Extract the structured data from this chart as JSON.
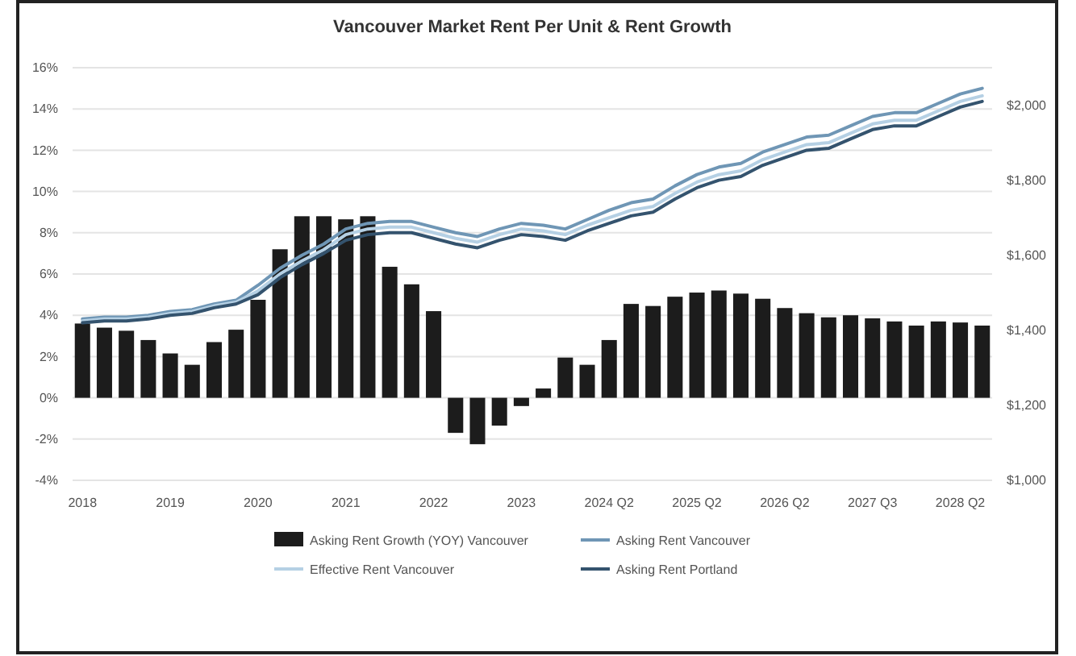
{
  "chart_data": {
    "type": "bar",
    "title": "Vancouver Market Rent Per Unit & Rent Growth",
    "categories": [
      "2018",
      null,
      null,
      null,
      "2019",
      null,
      null,
      null,
      "2020",
      null,
      null,
      null,
      "2021",
      null,
      null,
      null,
      "2022",
      null,
      null,
      null,
      "2023",
      null,
      null,
      null,
      "2024 Q2",
      null,
      null,
      null,
      "2025 Q2",
      null,
      null,
      null,
      "2026 Q2",
      null,
      null,
      null,
      "2027 Q3",
      null,
      null,
      null,
      "2028 Q2",
      null
    ],
    "series": [
      {
        "name": "Asking Rent Growth (YOY) Vancouver",
        "color": "#1c1c1c",
        "values": [
          3.6,
          3.4,
          3.25,
          2.8,
          2.15,
          1.6,
          2.7,
          3.3,
          4.75,
          7.2,
          8.8,
          8.8,
          8.65,
          8.8,
          6.35,
          5.5,
          4.2,
          -1.7,
          -2.25,
          -1.35,
          -0.4,
          0.45,
          1.95,
          1.6,
          2.8,
          4.55,
          4.45,
          4.9,
          5.1,
          5.2,
          5.05,
          4.8,
          4.35,
          4.1,
          3.9,
          4.0,
          3.85,
          3.7,
          3.5,
          3.7,
          3.65,
          3.5
        ]
      },
      {
        "name": "Asking Rent Vancouver",
        "type": "line",
        "axis": "y2",
        "color": "#6f96b5",
        "values": [
          1430,
          1435,
          1435,
          1440,
          1450,
          1455,
          1470,
          1480,
          1520,
          1565,
          1600,
          1630,
          1670,
          1685,
          1690,
          1690,
          1675,
          1660,
          1650,
          1670,
          1685,
          1680,
          1670,
          1695,
          1720,
          1740,
          1750,
          1785,
          1815,
          1835,
          1845,
          1875,
          1895,
          1915,
          1920,
          1945,
          1970,
          1980,
          1980,
          2005,
          2030,
          2045
        ]
      },
      {
        "name": "Effective Rent Vancouver",
        "type": "line",
        "axis": "y2",
        "color": "#b5d0e4",
        "values": [
          1425,
          1430,
          1430,
          1435,
          1445,
          1450,
          1465,
          1475,
          1505,
          1550,
          1585,
          1615,
          1655,
          1670,
          1675,
          1675,
          1660,
          1645,
          1635,
          1655,
          1670,
          1665,
          1655,
          1680,
          1700,
          1720,
          1730,
          1765,
          1795,
          1815,
          1825,
          1855,
          1875,
          1895,
          1900,
          1925,
          1950,
          1960,
          1960,
          1985,
          2010,
          2025
        ]
      },
      {
        "name": "Asking Rent Portland",
        "type": "line",
        "axis": "y2",
        "color": "#34536e",
        "values": [
          1420,
          1425,
          1425,
          1430,
          1440,
          1445,
          1460,
          1470,
          1495,
          1540,
          1575,
          1605,
          1640,
          1655,
          1660,
          1660,
          1645,
          1630,
          1620,
          1640,
          1655,
          1650,
          1640,
          1665,
          1685,
          1705,
          1715,
          1750,
          1780,
          1800,
          1810,
          1840,
          1860,
          1880,
          1885,
          1910,
          1935,
          1945,
          1945,
          1970,
          1995,
          2010
        ]
      }
    ],
    "ylim": [
      -4,
      16
    ],
    "yticks": [
      {
        "value": -4,
        "label": "-4%"
      },
      {
        "value": -2,
        "label": "-2%"
      },
      {
        "value": 0,
        "label": "0%"
      },
      {
        "value": 2,
        "label": "2%"
      },
      {
        "value": 4,
        "label": "4%"
      },
      {
        "value": 6,
        "label": "6%"
      },
      {
        "value": 8,
        "label": "8%"
      },
      {
        "value": 10,
        "label": "10%"
      },
      {
        "value": 12,
        "label": "12%"
      },
      {
        "value": 14,
        "label": "14%"
      },
      {
        "value": 16,
        "label": "16%"
      }
    ],
    "y2lim": [
      1000,
      2100
    ],
    "y2ticks": [
      {
        "value": 1000,
        "label": "$1,000"
      },
      {
        "value": 1200,
        "label": "$1,200"
      },
      {
        "value": 1400,
        "label": "$1,400"
      },
      {
        "value": 1600,
        "label": "$1,600"
      },
      {
        "value": 1800,
        "label": "$1,800"
      },
      {
        "value": 2000,
        "label": "$2,000"
      }
    ],
    "grid": "y",
    "legend": "bottom"
  }
}
